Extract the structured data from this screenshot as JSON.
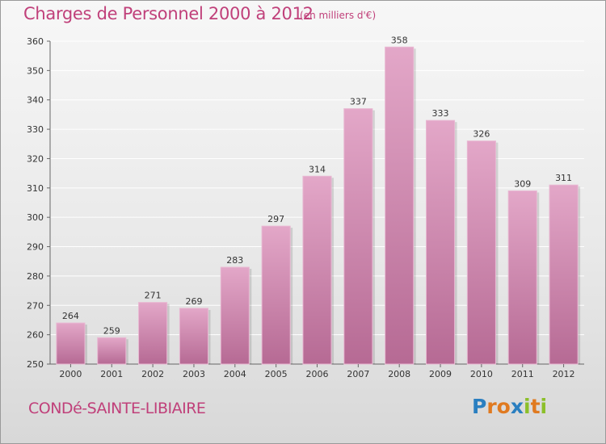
{
  "chart_data": {
    "type": "bar",
    "title": "Charges de Personnel 2000 à 2012",
    "subtitle": "(en milliers d'€)",
    "categories": [
      "2000",
      "2001",
      "2002",
      "2003",
      "2004",
      "2005",
      "2006",
      "2007",
      "2008",
      "2009",
      "2010",
      "2011",
      "2012"
    ],
    "values": [
      264,
      259,
      271,
      269,
      283,
      297,
      314,
      337,
      358,
      333,
      326,
      309,
      311
    ],
    "ylim": [
      250,
      360
    ],
    "yticks": [
      250,
      260,
      270,
      280,
      290,
      300,
      310,
      320,
      330,
      340,
      350,
      360
    ],
    "grid": true,
    "bar_color": "#c77aa3"
  },
  "footer": {
    "commune": "CONDé-SAINTE-LIBIAIRE",
    "logo_letters": [
      "P",
      "r",
      "o",
      "x",
      "i",
      "t",
      "i"
    ],
    "logo_colors": [
      "#2a7fc0",
      "#e07a20",
      "#e07a20",
      "#2a7fc0",
      "#8cbf2a",
      "#e07a20",
      "#8cbf2a"
    ]
  }
}
